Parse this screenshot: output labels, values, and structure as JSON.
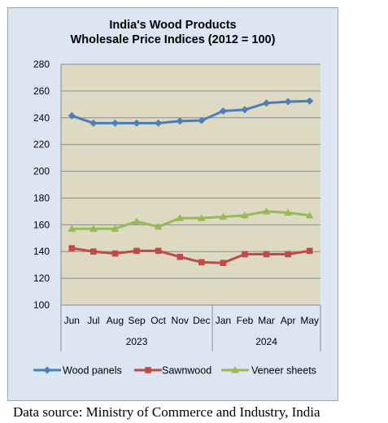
{
  "chart_data": {
    "type": "line",
    "title_line1": "India's Wood Products",
    "title_line2": "Wholesale Price Indices (2012 = 100)",
    "categories": [
      "Jun",
      "Jul",
      "Aug",
      "Sep",
      "Oct",
      "Nov",
      "Dec",
      "Jan",
      "Feb",
      "Mar",
      "Apr",
      "May"
    ],
    "year_groups": [
      {
        "label": "2023",
        "count": 7
      },
      {
        "label": "2024",
        "count": 5
      }
    ],
    "ylim": [
      100,
      280
    ],
    "yticks": [
      100,
      120,
      140,
      160,
      180,
      200,
      220,
      240,
      260,
      280
    ],
    "grid": true,
    "legend_position": "bottom",
    "series": [
      {
        "name": "Wood panels",
        "color": "#4a7ebb",
        "marker": "diamond",
        "values": [
          241.5,
          236,
          236,
          236,
          236,
          237.5,
          238,
          245,
          246,
          251,
          252,
          252.5
        ]
      },
      {
        "name": "Sawnwood",
        "color": "#be4b48",
        "marker": "square",
        "values": [
          142.5,
          140,
          138.5,
          140.5,
          140.5,
          136,
          132,
          131.5,
          138,
          138,
          138,
          140.5
        ]
      },
      {
        "name": "Veneer sheets",
        "color": "#98b954",
        "marker": "triangle",
        "values": [
          157,
          157,
          157,
          162.5,
          158.5,
          165,
          165,
          166,
          167,
          170,
          169,
          167
        ]
      }
    ],
    "source": "Data source: Ministry of Commerce and Industry, India"
  }
}
